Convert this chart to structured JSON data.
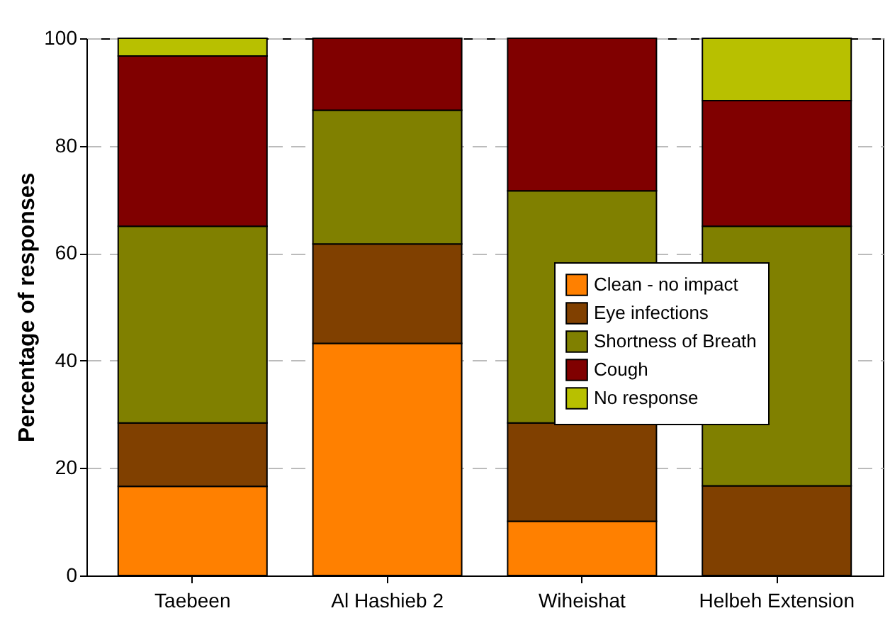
{
  "chart_data": {
    "type": "bar",
    "stacked": true,
    "ylabel": "Percentage of responses",
    "categories": [
      "Taebeen",
      "Al Hashieb 2",
      "Wiheishat",
      "Helbeh Extension"
    ],
    "series": [
      {
        "name": "Clean - no impact",
        "color": "#ff8000",
        "values": [
          16.6,
          43.2,
          10.1,
          0
        ]
      },
      {
        "name": "Eye infections",
        "color": "#804000",
        "values": [
          11.8,
          18.5,
          18.3,
          16.7
        ]
      },
      {
        "name": "Shortness of Breath",
        "color": "#808000",
        "values": [
          36.6,
          24.9,
          43.2,
          48.3
        ]
      },
      {
        "name": "Cough",
        "color": "#800000",
        "values": [
          31.7,
          13.4,
          28.4,
          23.4
        ]
      },
      {
        "name": "No response",
        "color": "#b8c000",
        "values": [
          3.3,
          0,
          0,
          11.6
        ]
      }
    ],
    "ylim": [
      0,
      100
    ],
    "yticks": [
      0,
      20,
      40,
      60,
      80,
      100
    ],
    "grid": "y",
    "legend": "right"
  }
}
